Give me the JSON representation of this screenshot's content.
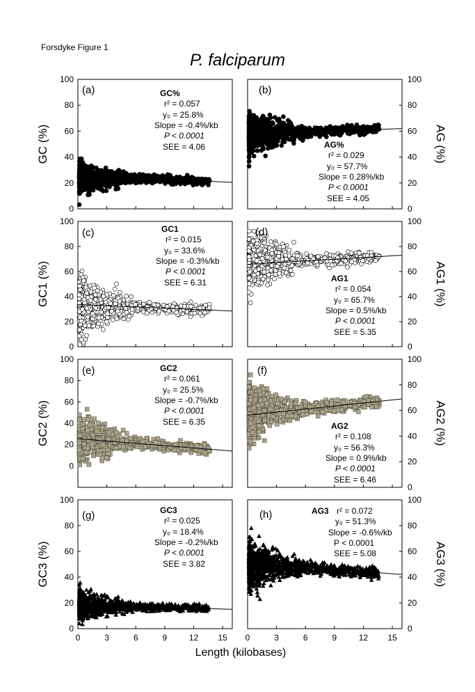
{
  "figure_label": "Forsdyke Figure 1",
  "title": "P. falciparum",
  "x_axis_label": "Length (kilobases)",
  "colors": {
    "gray_marker": "#a9a48a",
    "ink": "#000000",
    "paper": "#ffffff"
  },
  "chart_data": [
    {
      "id": "a",
      "type": "scatter",
      "panel_label": "(a)",
      "ylabel": "GC (%)",
      "ylabel_side": "left",
      "marker": "circle",
      "fill": "black",
      "xlim": [
        0,
        16
      ],
      "ylim": [
        0,
        100
      ],
      "xticks": [
        0,
        3,
        6,
        9,
        12,
        15
      ],
      "yticks": [
        0,
        20,
        40,
        60,
        80,
        100
      ],
      "cloud": {
        "center": 22,
        "spread_start": 10,
        "spread_end": 2.5,
        "density": "high"
      },
      "fit_line": {
        "y0": 25.8,
        "y_end": 20.5
      },
      "stats": {
        "name": "GC%",
        "r2": "r² = 0.057",
        "y0": "y₀ = 25.8%",
        "slope": "Slope = -0.4%/kb",
        "p": "P < 0.0001",
        "see": "SEE = 4.06"
      }
    },
    {
      "id": "b",
      "type": "scatter",
      "panel_label": "(b)",
      "ylabel": "AG (%)",
      "ylabel_side": "right",
      "marker": "circle",
      "fill": "black",
      "xlim": [
        0,
        16
      ],
      "ylim": [
        0,
        100
      ],
      "xticks": [
        0,
        3,
        6,
        9,
        12,
        15
      ],
      "yticks": [
        0,
        20,
        40,
        60,
        80,
        100
      ],
      "cloud": {
        "center": 58,
        "spread_start": 14,
        "spread_end": 3,
        "density": "high"
      },
      "fit_line": {
        "y0": 57.7,
        "y_end": 62
      },
      "stats": {
        "name": "AG%",
        "r2": "r² = 0.029",
        "y0": "y₀ = 57.7%",
        "slope": "Slope = 0.28%/kb",
        "p": "P < 0.0001",
        "see": "SEE = 4.05"
      }
    },
    {
      "id": "c",
      "type": "scatter",
      "panel_label": "(c)",
      "ylabel": "GC1 (%)",
      "ylabel_side": "left",
      "marker": "circle",
      "fill": "white",
      "xlim": [
        0,
        16
      ],
      "ylim": [
        0,
        100
      ],
      "xticks": [
        0,
        3,
        6,
        9,
        12,
        15
      ],
      "yticks": [
        0,
        20,
        40,
        60,
        80,
        100
      ],
      "cloud": {
        "center": 32,
        "spread_start": 20,
        "spread_end": 4,
        "density": "medium"
      },
      "fit_line": {
        "y0": 33.6,
        "y_end": 28.5
      },
      "stats": {
        "name": "GC1",
        "r2": "r² = 0.015",
        "y0": "y₀ = 33.6%",
        "slope": "Slope = -0.3%/kb",
        "p": "P < 0.0001",
        "see": "SEE = 6.31"
      }
    },
    {
      "id": "d",
      "type": "scatter",
      "panel_label": "(d)",
      "ylabel": "AG1 (%)",
      "ylabel_side": "right",
      "marker": "circle",
      "fill": "white",
      "xlim": [
        0,
        16
      ],
      "ylim": [
        0,
        100
      ],
      "xticks": [
        0,
        3,
        6,
        9,
        12,
        15
      ],
      "yticks": [
        0,
        20,
        40,
        60,
        80,
        100
      ],
      "cloud": {
        "center": 68,
        "spread_start": 20,
        "spread_end": 4,
        "density": "medium"
      },
      "fit_line": {
        "y0": 65.7,
        "y_end": 73
      },
      "stats": {
        "name": "AG1",
        "r2": "r² = 0.054",
        "y0": "y₀ = 65.7%",
        "slope": "Slope = 0.5%/kb",
        "p": "P < 0.0001",
        "see": "SEE = 5.35"
      }
    },
    {
      "id": "e",
      "type": "scatter",
      "panel_label": "(e)",
      "ylabel": "GC2 (%)",
      "ylabel_side": "left",
      "marker": "square",
      "fill": "gray",
      "xlim": [
        0,
        16
      ],
      "ylim": [
        -20,
        100
      ],
      "xticks": [
        0,
        3,
        6,
        9,
        12,
        15
      ],
      "yticks": [
        0,
        20,
        40,
        60,
        80,
        100
      ],
      "cloud": {
        "center": 25,
        "spread_start": 18,
        "spread_end": 4,
        "density": "medium"
      },
      "fit_line": {
        "y0": 25.5,
        "y_end": 14
      },
      "stats": {
        "name": "GC2",
        "r2": "r² = 0.061",
        "y0": "y₀ = 25.5%",
        "slope": "Slope = -0.7%/kb",
        "p": "P < 0.0001",
        "see": "SEE = 6.35"
      }
    },
    {
      "id": "f",
      "type": "scatter",
      "panel_label": "(f)",
      "ylabel": "AG2 (%)",
      "ylabel_side": "right",
      "marker": "square",
      "fill": "gray",
      "xlim": [
        0,
        16
      ],
      "ylim": [
        0,
        100
      ],
      "xticks": [
        0,
        3,
        6,
        9,
        12,
        15
      ],
      "yticks": [
        0,
        20,
        40,
        60,
        80,
        100
      ],
      "cloud": {
        "center": 58,
        "spread_start": 20,
        "spread_end": 4,
        "density": "medium"
      },
      "fit_line": {
        "y0": 56.3,
        "y_end": 69
      },
      "stats": {
        "name": "AG2",
        "r2": "r² = 0.108",
        "y0": "y₀ = 56.3%",
        "slope": "Slope = 0.9%/kb",
        "p": "P < 0.0001",
        "see": "SEE = 6.46"
      }
    },
    {
      "id": "g",
      "type": "scatter",
      "panel_label": "(g)",
      "ylabel": "GC3 (%)",
      "ylabel_side": "left",
      "marker": "triangle",
      "fill": "black",
      "xlim": [
        0,
        16
      ],
      "ylim": [
        0,
        100
      ],
      "xticks": [
        0,
        3,
        6,
        9,
        12,
        15
      ],
      "yticks": [
        0,
        20,
        40,
        60,
        80,
        100
      ],
      "cloud": {
        "center": 18,
        "spread_start": 10,
        "spread_end": 2.5,
        "density": "high"
      },
      "fit_line": {
        "y0": 18.4,
        "y_end": 15
      },
      "stats": {
        "name": "GC3",
        "r2": "r² = 0.025",
        "y0": "y₀ = 18.4%",
        "slope": "Slope = -0.2%/kb",
        "p": "P < 0.0001",
        "see": "SEE = 3.82"
      }
    },
    {
      "id": "h",
      "type": "scatter",
      "panel_label": "(h)",
      "ylabel": "AG3 (%)",
      "ylabel_side": "right",
      "marker": "triangle",
      "fill": "black",
      "xlim": [
        0,
        16
      ],
      "ylim": [
        0,
        100
      ],
      "xticks": [
        0,
        3,
        6,
        9,
        12,
        15
      ],
      "yticks": [
        0,
        20,
        40,
        60,
        80,
        100
      ],
      "cloud": {
        "center": 48,
        "spread_start": 16,
        "spread_end": 4,
        "density": "high"
      },
      "fit_line": {
        "y0": 51.3,
        "y_end": 42
      },
      "stats": {
        "name": "AG3",
        "r2": "r² = 0.072",
        "y0": "y₀ = 51.3%",
        "slope": "Slope = -0.6%/kb",
        "p": "P < 0.0001",
        "see": "SEE = 5.08"
      }
    }
  ]
}
